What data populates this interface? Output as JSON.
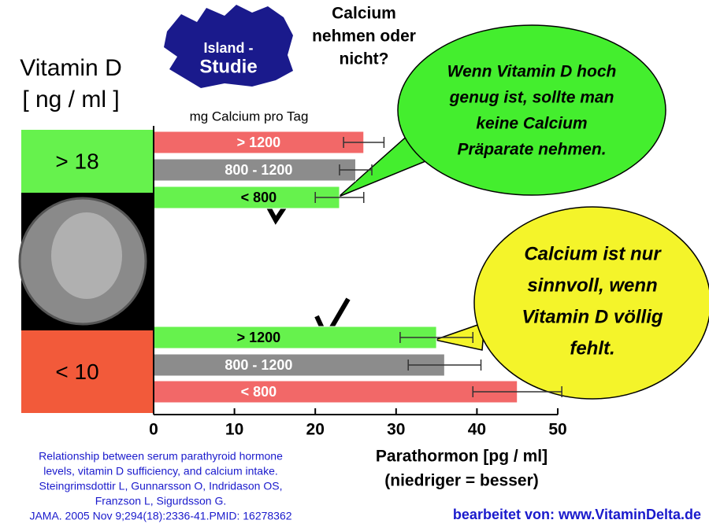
{
  "chart_data": {
    "type": "grouped-hbar",
    "title": [
      "Vitamin D",
      "[ ng / ml ]"
    ],
    "map_label": [
      "Island -",
      "Studie"
    ],
    "question": [
      "Calcium",
      "nehmen oder",
      "nicht?"
    ],
    "legend_title": "mg Calcium pro Tag",
    "xlabel": [
      "Parathormon [pg / ml]",
      "(niedriger = besser)"
    ],
    "xlim": [
      0,
      50
    ],
    "xticks": [
      0,
      10,
      20,
      30,
      40,
      50
    ],
    "groups": [
      {
        "label": "> 18",
        "color": "#66f24d",
        "bars": [
          {
            "label": "> 1200",
            "value": 26,
            "error": 2.5,
            "color": "#f26868"
          },
          {
            "label": "800 - 1200",
            "value": 25,
            "error": 2,
            "color": "#8c8c8c"
          },
          {
            "label": "< 800",
            "value": 23,
            "error": 3,
            "color": "#66f24d"
          }
        ]
      },
      {
        "label": "< 10",
        "color": "#f25a3a",
        "bars": [
          {
            "label": "> 1200",
            "value": 35,
            "error": 4.5,
            "color": "#66f24d"
          },
          {
            "label": "800 - 1200",
            "value": 36,
            "error": 4.5,
            "color": "#8c8c8c"
          },
          {
            "label": "< 800",
            "value": 45,
            "error": 5.5,
            "color": "#f26868"
          }
        ]
      }
    ],
    "bubbles": [
      [
        "Wenn Vitamin D hoch",
        "genug ist, sollte man",
        "keine Calcium",
        "Präparate nehmen."
      ],
      [
        "Calcium ist nur",
        "sinnvoll, wenn",
        "Vitamin D völlig",
        "fehlt."
      ]
    ],
    "citation": [
      "Relationship between serum parathyroid hormone",
      "levels, vitamin D sufficiency, and calcium intake.",
      "Steingrimsdottir L, Gunnarsson O, Indridason OS,",
      "Franzson L, Sigurdsson G.",
      "JAMA. 2005 Nov 9;294(18):2336-41.PMID: 16278362"
    ],
    "credit": "bearbeitet von: www.VitaminDelta.de"
  }
}
